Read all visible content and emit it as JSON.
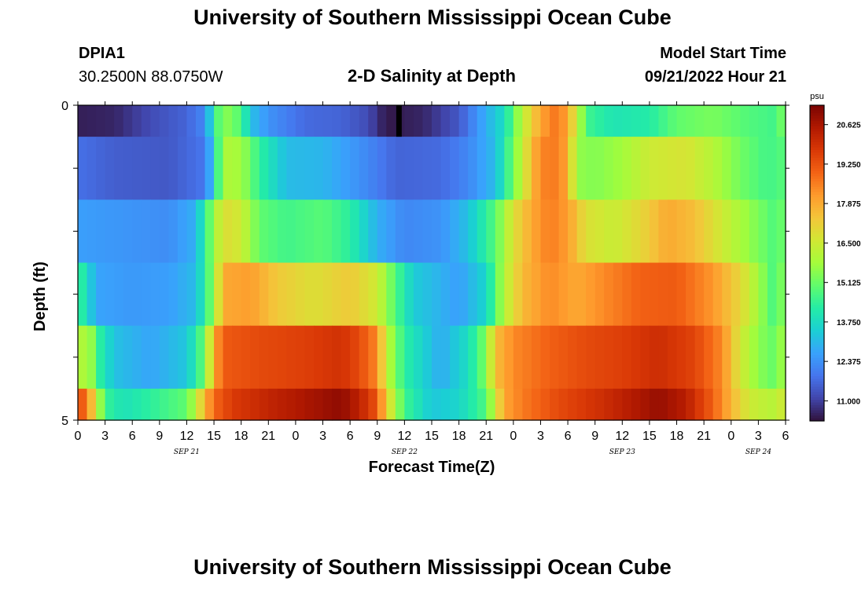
{
  "title": "University of Southern Mississippi Ocean Cube",
  "footer_title": "University of Southern Mississippi Ocean Cube",
  "station": {
    "id": "DPIA1",
    "coords": "30.2500N  88.0750W"
  },
  "plot_title": "2-D Salinity at Depth",
  "model_start": {
    "label": "Model Start Time",
    "value": "09/21/2022 Hour 21"
  },
  "chart_data": {
    "type": "heatmap",
    "title": "2-D Salinity at Depth",
    "xlabel": "Forecast Time(Z)",
    "ylabel": "Depth (ft)",
    "x_hours_range": [
      0,
      78
    ],
    "y_range": [
      0,
      5
    ],
    "y_tick_labels": [
      "0",
      "5"
    ],
    "x_tick_labels": [
      "0",
      "3",
      "6",
      "9",
      "12",
      "15",
      "18",
      "21",
      "0",
      "3",
      "6",
      "9",
      "12",
      "15",
      "18",
      "21",
      "0",
      "3",
      "6",
      "9",
      "12",
      "15",
      "18",
      "21",
      "0",
      "3",
      "6"
    ],
    "date_labels": [
      {
        "hour": 12,
        "label": "SEP 21"
      },
      {
        "hour": 36,
        "label": "SEP 22"
      },
      {
        "hour": 60,
        "label": "SEP 23"
      },
      {
        "hour": 75,
        "label": "SEP 24"
      }
    ],
    "colorbar": {
      "unit": "psu",
      "min": 10.3,
      "max": 21.3,
      "ticks": [
        "20.625",
        "19.250",
        "17.875",
        "16.500",
        "15.125",
        "13.750",
        "12.375",
        "11.000"
      ],
      "colors": [
        "#30123b",
        "#4145ab",
        "#4675ed",
        "#39a2fc",
        "#1bcfd4",
        "#24eca6",
        "#61fc6c",
        "#a4fc3b",
        "#d1e834",
        "#f3c63a",
        "#fe9b2d",
        "#f36315",
        "#d93806",
        "#b11901",
        "#7a0403"
      ]
    },
    "layers": [
      {
        "depth_top": 0,
        "depth_bottom": 0.5,
        "keys": [
          [
            0,
            10.5
          ],
          [
            4,
            10.6
          ],
          [
            8,
            11.2
          ],
          [
            12,
            11.6
          ],
          [
            14,
            12.2
          ],
          [
            15,
            14.2
          ],
          [
            16,
            15.6
          ],
          [
            18,
            14.8
          ],
          [
            19,
            13.2
          ],
          [
            21,
            12.4
          ],
          [
            25,
            11.7
          ],
          [
            29,
            11.6
          ],
          [
            32,
            11.2
          ],
          [
            34,
            10.4
          ],
          [
            38,
            10.6
          ],
          [
            42,
            11.4
          ],
          [
            44,
            12.4
          ],
          [
            47,
            13.8
          ],
          [
            49,
            16.2
          ],
          [
            51,
            18.0
          ],
          [
            53,
            18.8
          ],
          [
            55,
            16.6
          ],
          [
            56,
            14.6
          ],
          [
            59,
            14.0
          ],
          [
            63,
            14.2
          ],
          [
            66,
            15.0
          ],
          [
            70,
            15.3
          ],
          [
            74,
            14.8
          ],
          [
            77,
            14.6
          ],
          [
            78,
            15.6
          ]
        ]
      },
      {
        "depth_top": 0.5,
        "depth_bottom": 1.5,
        "keys": [
          [
            0,
            11.8
          ],
          [
            4,
            11.5
          ],
          [
            10,
            11.4
          ],
          [
            14,
            11.9
          ],
          [
            15,
            13.5
          ],
          [
            16,
            16.0
          ],
          [
            18,
            15.8
          ],
          [
            20,
            14.4
          ],
          [
            23,
            13.1
          ],
          [
            27,
            13.0
          ],
          [
            32,
            12.2
          ],
          [
            35,
            11.6
          ],
          [
            40,
            11.7
          ],
          [
            43,
            12.2
          ],
          [
            46,
            13.1
          ],
          [
            48,
            15.2
          ],
          [
            50,
            17.5
          ],
          [
            51,
            18.5
          ],
          [
            53,
            18.6
          ],
          [
            54,
            17.8
          ],
          [
            55,
            15.6
          ],
          [
            57,
            15.4
          ],
          [
            60,
            15.8
          ],
          [
            63,
            16.5
          ],
          [
            67,
            16.7
          ],
          [
            70,
            16.1
          ],
          [
            73,
            15.2
          ],
          [
            76,
            14.6
          ],
          [
            78,
            14.9
          ]
        ]
      },
      {
        "depth_top": 1.5,
        "depth_bottom": 2.5,
        "keys": [
          [
            0,
            12.6
          ],
          [
            3,
            12.5
          ],
          [
            10,
            12.3
          ],
          [
            13,
            12.9
          ],
          [
            14,
            14.4
          ],
          [
            16,
            16.9
          ],
          [
            18,
            16.5
          ],
          [
            20,
            15.0
          ],
          [
            23,
            14.6
          ],
          [
            27,
            14.9
          ],
          [
            30,
            14.3
          ],
          [
            33,
            12.9
          ],
          [
            36,
            12.2
          ],
          [
            40,
            12.4
          ],
          [
            43,
            13.2
          ],
          [
            46,
            14.9
          ],
          [
            48,
            16.8
          ],
          [
            50,
            17.9
          ],
          [
            52,
            18.6
          ],
          [
            54,
            18.1
          ],
          [
            56,
            16.8
          ],
          [
            59,
            16.4
          ],
          [
            62,
            17.0
          ],
          [
            65,
            17.9
          ],
          [
            68,
            17.5
          ],
          [
            71,
            16.5
          ],
          [
            74,
            15.6
          ],
          [
            77,
            14.7
          ],
          [
            78,
            15.4
          ]
        ]
      },
      {
        "depth_top": 2.5,
        "depth_bottom": 3.5,
        "keys": [
          [
            0,
            14.6
          ],
          [
            1,
            13.8
          ],
          [
            2,
            12.7
          ],
          [
            6,
            12.5
          ],
          [
            10,
            12.6
          ],
          [
            13,
            13.1
          ],
          [
            15,
            15.6
          ],
          [
            16,
            17.9
          ],
          [
            19,
            18.1
          ],
          [
            22,
            17.3
          ],
          [
            26,
            16.8
          ],
          [
            30,
            17.3
          ],
          [
            33,
            16.5
          ],
          [
            35,
            14.8
          ],
          [
            37,
            13.4
          ],
          [
            42,
            12.6
          ],
          [
            45,
            13.6
          ],
          [
            47,
            16.1
          ],
          [
            49,
            17.6
          ],
          [
            52,
            18.4
          ],
          [
            55,
            17.9
          ],
          [
            58,
            18.4
          ],
          [
            62,
            19.0
          ],
          [
            66,
            19.1
          ],
          [
            70,
            18.2
          ],
          [
            73,
            17.0
          ],
          [
            75,
            15.8
          ],
          [
            77,
            14.5
          ],
          [
            78,
            16.0
          ]
        ]
      },
      {
        "depth_top": 3.5,
        "depth_bottom": 4.5,
        "keys": [
          [
            0,
            15.4
          ],
          [
            1,
            16.5
          ],
          [
            2,
            14.6
          ],
          [
            4,
            13.2
          ],
          [
            8,
            12.7
          ],
          [
            12,
            13.3
          ],
          [
            14,
            15.2
          ],
          [
            15,
            17.8
          ],
          [
            16,
            19.1
          ],
          [
            20,
            19.4
          ],
          [
            25,
            19.6
          ],
          [
            29,
            19.9
          ],
          [
            31,
            19.4
          ],
          [
            33,
            18.4
          ],
          [
            34,
            16.3
          ],
          [
            36,
            14.3
          ],
          [
            40,
            12.8
          ],
          [
            43,
            13.8
          ],
          [
            45,
            15.4
          ],
          [
            46,
            17.5
          ],
          [
            48,
            18.4
          ],
          [
            52,
            19.0
          ],
          [
            56,
            19.4
          ],
          [
            60,
            19.6
          ],
          [
            64,
            20.0
          ],
          [
            68,
            19.5
          ],
          [
            71,
            18.4
          ],
          [
            73,
            16.6
          ],
          [
            75,
            15.5
          ],
          [
            77,
            15.0
          ],
          [
            78,
            16.2
          ]
        ]
      },
      {
        "depth_top": 4.5,
        "depth_bottom": 5,
        "keys": [
          [
            0,
            19.5
          ],
          [
            1,
            18.6
          ],
          [
            2,
            16.6
          ],
          [
            3,
            14.5
          ],
          [
            5,
            13.9
          ],
          [
            9,
            14.5
          ],
          [
            12,
            15.0
          ],
          [
            13,
            16.2
          ],
          [
            14,
            17.7
          ],
          [
            15,
            18.9
          ],
          [
            17,
            19.7
          ],
          [
            21,
            20.2
          ],
          [
            25,
            20.6
          ],
          [
            29,
            21.0
          ],
          [
            31,
            20.3
          ],
          [
            33,
            19.2
          ],
          [
            34,
            17.2
          ],
          [
            36,
            14.6
          ],
          [
            39,
            13.3
          ],
          [
            42,
            13.6
          ],
          [
            45,
            14.8
          ],
          [
            46,
            16.5
          ],
          [
            47,
            18.0
          ],
          [
            49,
            18.6
          ],
          [
            53,
            19.4
          ],
          [
            58,
            20.0
          ],
          [
            62,
            20.6
          ],
          [
            64,
            20.9
          ],
          [
            67,
            20.4
          ],
          [
            70,
            19.0
          ],
          [
            72,
            17.7
          ],
          [
            74,
            16.5
          ],
          [
            76,
            16.2
          ],
          [
            77,
            16.1
          ],
          [
            78,
            16.8
          ]
        ]
      }
    ],
    "anomaly_markers": [
      {
        "hour": 35,
        "depth_top": 0,
        "depth_bottom": 0.5,
        "color": "#000000"
      }
    ]
  }
}
